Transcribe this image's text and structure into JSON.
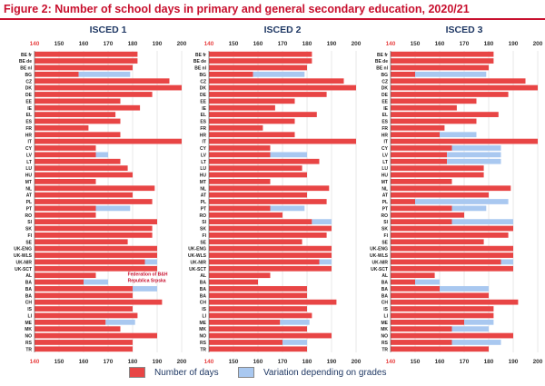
{
  "title": "Figure 2: Number of school days in primary and general secondary education, 2020/21",
  "colors": {
    "days": "#e84545",
    "variation": "#a9c8f0",
    "title": "#c8102e",
    "panel_title": "#1f3864",
    "axis_min": "#e84545"
  },
  "legend": {
    "days_label": "Number of days",
    "variation_label": "Variation depending on grades"
  },
  "chart_data": {
    "type": "bar",
    "orientation": "horizontal",
    "stacked": true,
    "xlim": [
      140,
      200
    ],
    "xticks": [
      "140",
      "150",
      "160",
      "170",
      "180",
      "190",
      "200"
    ],
    "grid": true,
    "legend_position": "bottom",
    "categories": [
      "BE fr",
      "BE de",
      "BE nl",
      "BG",
      "CZ",
      "DK",
      "DE",
      "EE",
      "IE",
      "EL",
      "ES",
      "FR",
      "HR",
      "IT",
      "CY",
      "LV",
      "LT",
      "LU",
      "HU",
      "MT",
      "NL",
      "AT",
      "PL",
      "PT",
      "RO",
      "SI",
      "SK",
      "FI",
      "SE",
      "UK-ENG",
      "UK-WLS",
      "UK-NIR",
      "UK-SCT",
      "AL",
      "BA",
      "BA",
      "BA",
      "CH",
      "IS",
      "LI",
      "ME",
      "MK",
      "NO",
      "RS",
      "TR"
    ],
    "series_names": [
      "Number of days",
      "Variation depending on grades"
    ],
    "panels": [
      {
        "title": "ISCED 1",
        "days": [
          182,
          182,
          180,
          158,
          195,
          200,
          188,
          175,
          183,
          173,
          175,
          162,
          175,
          200,
          165,
          165,
          175,
          178,
          180,
          165,
          189,
          180,
          188,
          165,
          165,
          190,
          188,
          188,
          178,
          190,
          190,
          185,
          190,
          165,
          160,
          180,
          180,
          192,
          180,
          182,
          169,
          175,
          190,
          180,
          180
        ],
        "variation": [
          0,
          0,
          0,
          21,
          0,
          0,
          0,
          0,
          0,
          0,
          0,
          0,
          0,
          0,
          0,
          5,
          0,
          0,
          0,
          0,
          0,
          0,
          0,
          14,
          0,
          0,
          0,
          0,
          0,
          0,
          0,
          5,
          0,
          0,
          10,
          10,
          0,
          0,
          0,
          0,
          12,
          0,
          0,
          0,
          0
        ],
        "annotation": "Federation of B&H\nRepublica Srpska"
      },
      {
        "title": "ISCED 2",
        "days": [
          182,
          182,
          180,
          158,
          195,
          200,
          188,
          175,
          167,
          184,
          175,
          162,
          175,
          200,
          165,
          165,
          185,
          178,
          180,
          165,
          189,
          180,
          188,
          165,
          170,
          182,
          190,
          188,
          178,
          190,
          190,
          185,
          190,
          165,
          160,
          180,
          180,
          192,
          180,
          182,
          169,
          180,
          190,
          170,
          180
        ],
        "variation": [
          0,
          0,
          0,
          21,
          0,
          0,
          0,
          0,
          0,
          0,
          0,
          0,
          0,
          0,
          0,
          15,
          0,
          0,
          0,
          0,
          0,
          0,
          0,
          14,
          0,
          8,
          0,
          0,
          0,
          0,
          0,
          5,
          0,
          0,
          0,
          0,
          0,
          0,
          0,
          0,
          12,
          0,
          0,
          10,
          0
        ]
      },
      {
        "title": "ISCED 3",
        "days": [
          182,
          182,
          180,
          150,
          195,
          200,
          188,
          175,
          167,
          184,
          175,
          162,
          160,
          200,
          165,
          163,
          163,
          178,
          178,
          165,
          189,
          180,
          150,
          165,
          170,
          165,
          190,
          188,
          178,
          190,
          190,
          185,
          190,
          158,
          150,
          160,
          180,
          192,
          182,
          182,
          170,
          165,
          190,
          165,
          180
        ],
        "variation": [
          0,
          0,
          0,
          29,
          0,
          0,
          0,
          0,
          0,
          0,
          0,
          0,
          15,
          0,
          20,
          22,
          22,
          0,
          0,
          0,
          0,
          0,
          38,
          14,
          0,
          25,
          0,
          0,
          0,
          0,
          0,
          5,
          0,
          0,
          10,
          20,
          0,
          0,
          0,
          0,
          12,
          15,
          0,
          20,
          0
        ]
      }
    ]
  }
}
